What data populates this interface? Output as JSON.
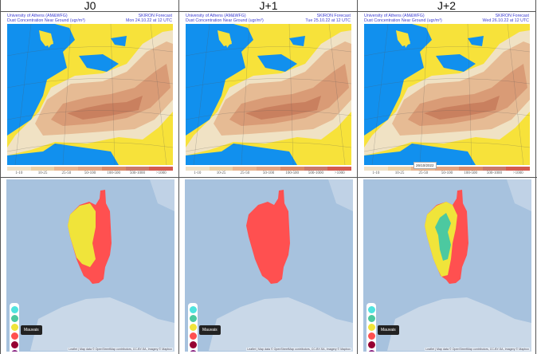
{
  "panels": [
    {
      "title": "J0",
      "institution": "University of Athens (AM&WFG)",
      "forecast": "SKIRON Forecast",
      "product": "Dust Concentration Near Ground (ugr/m³)",
      "date": "Mon 24.10.22 at 12 UTC",
      "pollution_state": "two-tone",
      "tooltip": "Mauvais"
    },
    {
      "title": "J+1",
      "institution": "University of Athens (AM&WFG)",
      "forecast": "SKIRON Forecast",
      "product": "Dust Concentration Near Ground (ugr/m³)",
      "date": "Tue 25.10.22 at 12 UTC",
      "pollution_state": "red",
      "tooltip": "Mauvais"
    },
    {
      "title": "J+2",
      "institution": "University of Athens (AM&WFG)",
      "forecast": "SKIRON Forecast",
      "product": "Dust Concentration Near Ground (ugr/m³)",
      "date": "Wed 26.10.22 at 12 UTC",
      "pollution_state": "three-tone",
      "tooltip": "Mauvais",
      "date_tooltip": "26/10/2022"
    }
  ],
  "dust_legend": [
    {
      "label": "1-10",
      "color": "#efe1c7"
    },
    {
      "label": "10-25",
      "color": "#ead0a6"
    },
    {
      "label": "25-50",
      "color": "#e9b58f"
    },
    {
      "label": "50-100",
      "color": "#e2a482"
    },
    {
      "label": "100-500",
      "color": "#da8a68"
    },
    {
      "label": "500-1000",
      "color": "#c9786a"
    },
    {
      "label": ">1000",
      "color": "#d35a4e"
    }
  ],
  "aq_legend_colors": [
    "#50e3de",
    "#4cc9a0",
    "#f0e43a",
    "#ff5050",
    "#960032",
    "#872181"
  ],
  "attribution": "Leaflet | Map data © OpenStreetMap contributors, CC-BY-SA, Imagery © Mapbox",
  "colors": {
    "sea": "#1190ee",
    "land": "#f7e23a",
    "aq_bg": "#a7c2de",
    "good": "#50e3de",
    "fair": "#4cc9a0",
    "moderate": "#f0e43a",
    "poor": "#ff5050"
  }
}
